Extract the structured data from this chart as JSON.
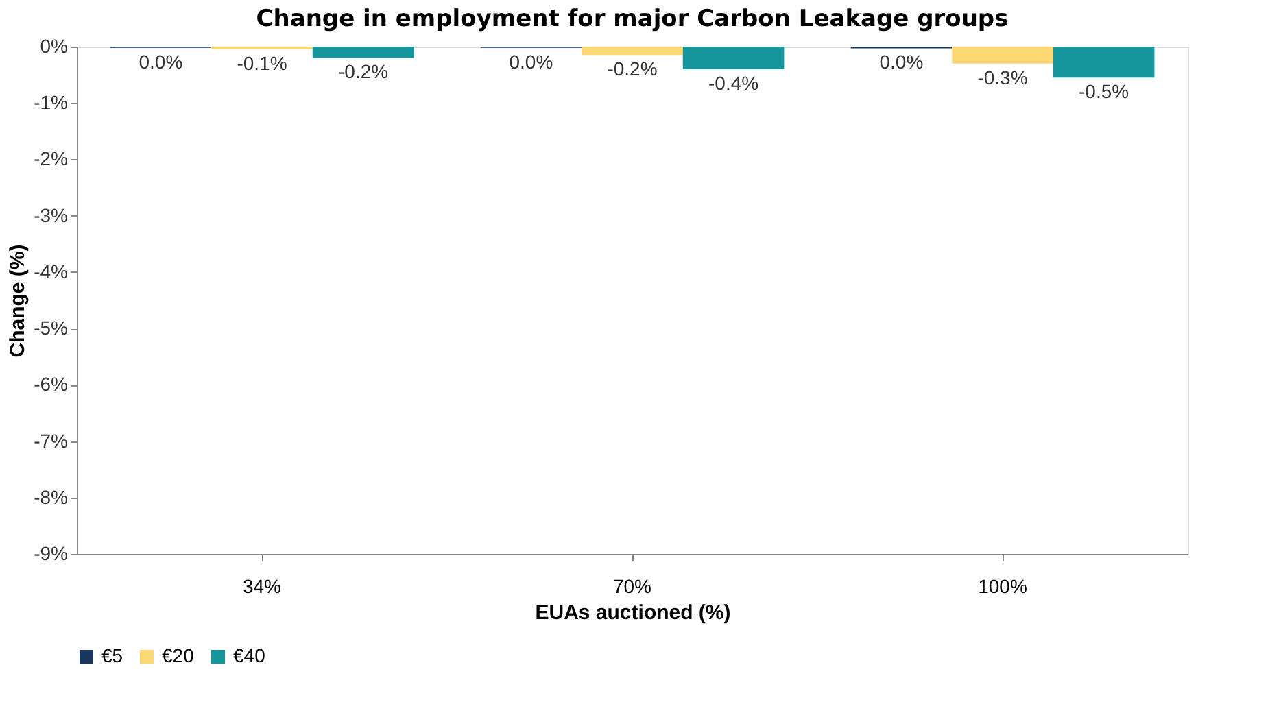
{
  "chart_data": {
    "type": "bar",
    "title": "Change in employment for major Carbon Leakage groups",
    "xlabel": "EUAs auctioned (%)",
    "ylabel": "Change (%)",
    "categories": [
      "34%",
      "70%",
      "100%"
    ],
    "series": [
      {
        "name": "€5",
        "color": "#17375e",
        "values": [
          -0.02,
          -0.02,
          -0.03
        ],
        "value_labels": [
          "0.0%",
          "0.0%",
          "0.0%"
        ]
      },
      {
        "name": "€20",
        "color": "#fcd875",
        "values": [
          -0.05,
          -0.15,
          -0.3
        ],
        "value_labels": [
          "-0.1%",
          "-0.2%",
          "-0.3%"
        ]
      },
      {
        "name": "€40",
        "color": "#17959c",
        "values": [
          -0.2,
          -0.4,
          -0.55
        ],
        "value_labels": [
          "-0.2%",
          "-0.4%",
          "-0.5%"
        ]
      }
    ],
    "ylim": [
      -9,
      0
    ],
    "yticks": [
      {
        "value": 0,
        "label": "0%"
      },
      {
        "value": -1,
        "label": "-1%"
      },
      {
        "value": -2,
        "label": "-2%"
      },
      {
        "value": -3,
        "label": "-3%"
      },
      {
        "value": -4,
        "label": "-4%"
      },
      {
        "value": -5,
        "label": "-5%"
      },
      {
        "value": -6,
        "label": "-6%"
      },
      {
        "value": -7,
        "label": "-7%"
      },
      {
        "value": -8,
        "label": "-8%"
      },
      {
        "value": -9,
        "label": "-9%"
      }
    ],
    "grid": false,
    "legend": "bottom"
  }
}
